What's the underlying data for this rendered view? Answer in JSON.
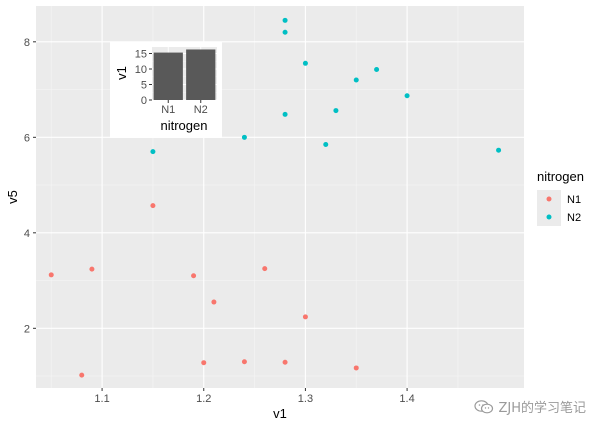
{
  "chart_data": [
    {
      "type": "scatter",
      "xlabel": "v1",
      "ylabel": "v5",
      "xlim": [
        1.035,
        1.515
      ],
      "ylim": [
        0.75,
        8.75
      ],
      "x_ticks": [
        1.1,
        1.2,
        1.3,
        1.4
      ],
      "x_tick_labels": [
        "1.1",
        "1.2",
        "1.3",
        "1.4"
      ],
      "y_ticks": [
        2,
        4,
        6,
        8
      ],
      "y_tick_labels": [
        "2",
        "4",
        "6",
        "8"
      ],
      "grid": true,
      "legend": {
        "title": "nitrogen",
        "placement": "right",
        "entries": [
          {
            "label": "N1",
            "color": "#F8766D"
          },
          {
            "label": "N2",
            "color": "#00BFC4"
          }
        ]
      },
      "series": [
        {
          "name": "N1",
          "color": "#F8766D",
          "points": [
            {
              "x": 1.05,
              "y": 3.12
            },
            {
              "x": 1.08,
              "y": 1.02
            },
            {
              "x": 1.09,
              "y": 3.24
            },
            {
              "x": 1.15,
              "y": 4.57
            },
            {
              "x": 1.19,
              "y": 3.1
            },
            {
              "x": 1.2,
              "y": 1.28
            },
            {
              "x": 1.21,
              "y": 2.55
            },
            {
              "x": 1.24,
              "y": 1.3
            },
            {
              "x": 1.26,
              "y": 3.25
            },
            {
              "x": 1.28,
              "y": 1.29
            },
            {
              "x": 1.3,
              "y": 2.24
            },
            {
              "x": 1.35,
              "y": 1.17
            }
          ]
        },
        {
          "name": "N2",
          "color": "#00BFC4",
          "points": [
            {
              "x": 1.15,
              "y": 5.7
            },
            {
              "x": 1.24,
              "y": 6.0
            },
            {
              "x": 1.28,
              "y": 8.45
            },
            {
              "x": 1.28,
              "y": 8.2
            },
            {
              "x": 1.28,
              "y": 6.48
            },
            {
              "x": 1.3,
              "y": 7.55
            },
            {
              "x": 1.32,
              "y": 5.85
            },
            {
              "x": 1.33,
              "y": 6.56
            },
            {
              "x": 1.35,
              "y": 7.2
            },
            {
              "x": 1.37,
              "y": 7.42
            },
            {
              "x": 1.4,
              "y": 6.87
            },
            {
              "x": 1.49,
              "y": 5.73
            }
          ]
        }
      ]
    },
    {
      "type": "bar",
      "categories": [
        "N1",
        "N2"
      ],
      "values": [
        15.3,
        16.3
      ],
      "xlabel": "nitrogen",
      "ylabel": "v1",
      "ylim": [
        0,
        17.1
      ],
      "y_ticks": [
        0,
        5,
        10,
        15
      ],
      "y_tick_labels": [
        "0",
        "5",
        "10",
        "15"
      ],
      "bar_color": "#595959"
    }
  ],
  "watermark": {
    "text": "ZJH的学习笔记",
    "icon": "wechat-icon"
  }
}
